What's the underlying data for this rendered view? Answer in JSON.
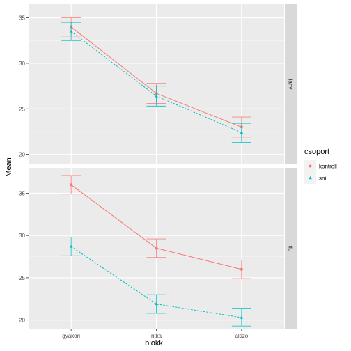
{
  "chart_data": {
    "type": "line",
    "xlabel": "blokk",
    "ylabel": "Mean",
    "categories": [
      "gyakori",
      "ritka",
      "alszo"
    ],
    "legend": {
      "title": "csoport",
      "placement": "right",
      "entries": [
        {
          "name": "kontroll",
          "color": "#F8766D",
          "shape": "circle",
          "linetype": "solid"
        },
        {
          "name": "sni",
          "color": "#00BFC4",
          "shape": "triangle",
          "linetype": "dashed"
        }
      ]
    },
    "grid": true,
    "panels": [
      {
        "label": "lany",
        "ylim": [
          18.9,
          36.5
        ],
        "yticks": [
          20,
          25,
          30,
          35
        ],
        "ytick_labels": [
          "20",
          "25",
          "30",
          "35"
        ],
        "series": [
          {
            "name": "kontroll",
            "values": [
              34.0,
              26.7,
              23.0
            ],
            "lower": [
              33.0,
              25.6,
              21.9
            ],
            "upper": [
              35.0,
              27.8,
              24.1
            ]
          },
          {
            "name": "sni",
            "values": [
              33.5,
              26.4,
              22.4
            ],
            "lower": [
              32.5,
              25.3,
              21.3
            ],
            "upper": [
              34.5,
              27.5,
              23.4
            ]
          }
        ]
      },
      {
        "label": "fiu",
        "ylim": [
          18.9,
          38.0
        ],
        "yticks": [
          20,
          25,
          30,
          35
        ],
        "ytick_labels": [
          "20",
          "25",
          "30",
          "35"
        ],
        "series": [
          {
            "name": "kontroll",
            "values": [
              36.0,
              28.5,
              26.0
            ],
            "lower": [
              34.9,
              27.4,
              24.9
            ],
            "upper": [
              37.1,
              29.6,
              27.1
            ]
          },
          {
            "name": "sni",
            "values": [
              28.7,
              21.9,
              20.3
            ],
            "lower": [
              27.6,
              20.8,
              19.3
            ],
            "upper": [
              29.8,
              23.0,
              21.4
            ]
          }
        ]
      }
    ]
  }
}
